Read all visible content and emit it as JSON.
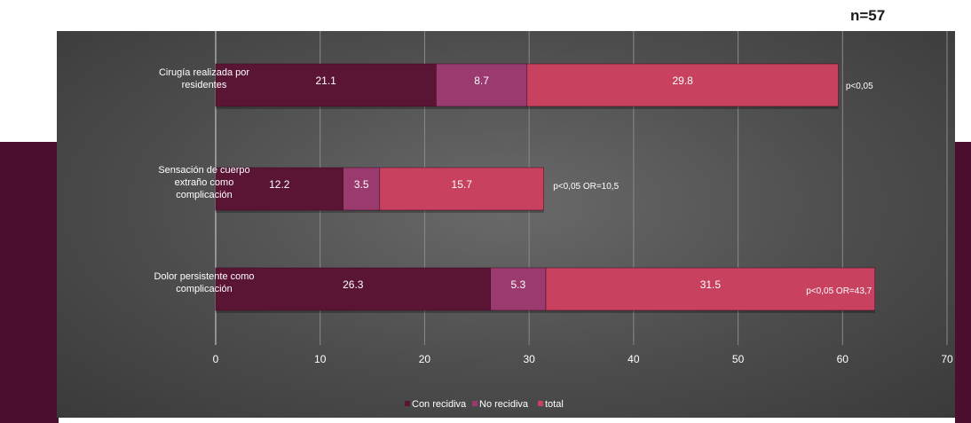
{
  "header": {
    "n_label": "n=57"
  },
  "colors": {
    "con_recidiva": "#5a1535",
    "no_recidiva": "#9a3a6e",
    "total": "#c8415e",
    "axis_text": "#ffffff",
    "grid": "#8a8a8a",
    "background_band": "#4a0f2e"
  },
  "chart_data": {
    "type": "bar",
    "orientation": "horizontal",
    "stacked": true,
    "title": "",
    "xlabel": "",
    "ylabel": "",
    "xlim": [
      0,
      70
    ],
    "x_ticks": [
      "0",
      "10",
      "20",
      "30",
      "40",
      "50",
      "60",
      "70"
    ],
    "grid": true,
    "legend_position": "bottom",
    "categories": [
      [
        "Cirugía realizada por",
        "residentes"
      ],
      [
        "Sensación de cuerpo",
        "extraño como",
        "complicación"
      ],
      [
        "Dolor persistente como",
        "complicación"
      ]
    ],
    "series": [
      {
        "name": "Con recidiva",
        "values": [
          21.1,
          12.2,
          26.3
        ],
        "labels": [
          "21.1",
          "12.2",
          "26.3"
        ]
      },
      {
        "name": "No recidiva",
        "values": [
          8.7,
          3.5,
          5.3
        ],
        "labels": [
          "8.7",
          "3.5",
          "5.3"
        ]
      },
      {
        "name": "total",
        "values": [
          29.8,
          15.7,
          31.5
        ],
        "labels": [
          "29.8",
          "15.7",
          "31.5"
        ]
      }
    ],
    "annotations": [
      "p<0,05",
      "p<0,05  OR=10,5",
      "p<0,05  OR=43,7"
    ]
  }
}
